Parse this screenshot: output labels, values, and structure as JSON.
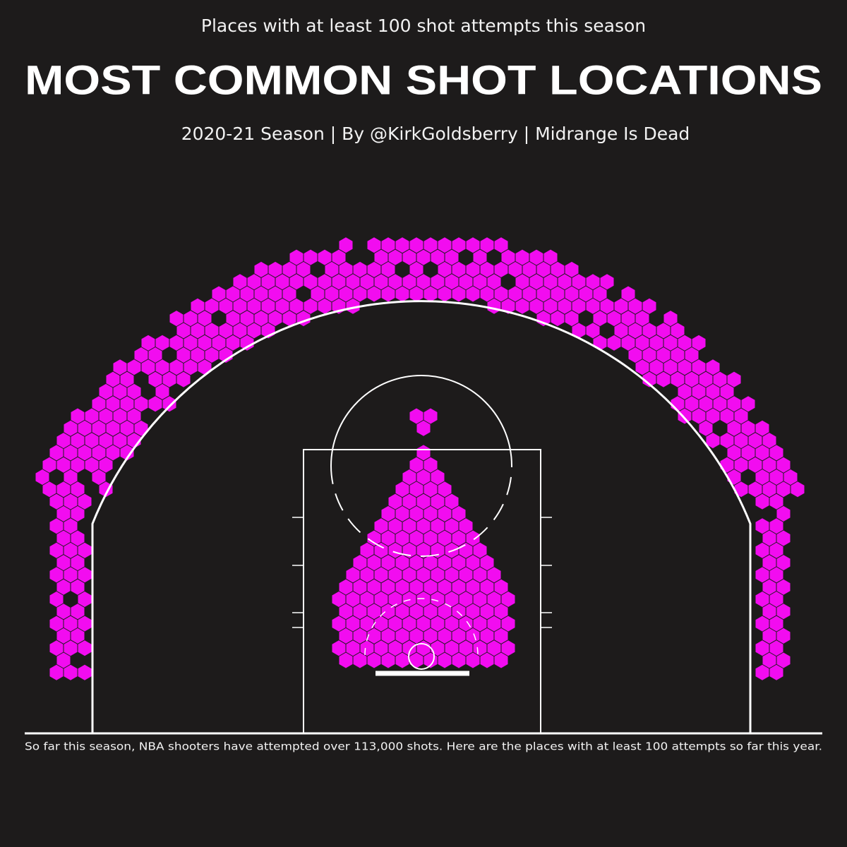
{
  "header": {
    "kicker": "Places with at least 100 shot attempts this season",
    "title": "MOST COMMON SHOT LOCATIONS",
    "subtitle": "2020-21 Season | By @KirkGoldsberry | Midrange Is Dead"
  },
  "footer": {
    "note": "So far this season, NBA shooters have attempted over 113,000 shots. Here are the places with at least 100 attempts so far this year."
  }
}
